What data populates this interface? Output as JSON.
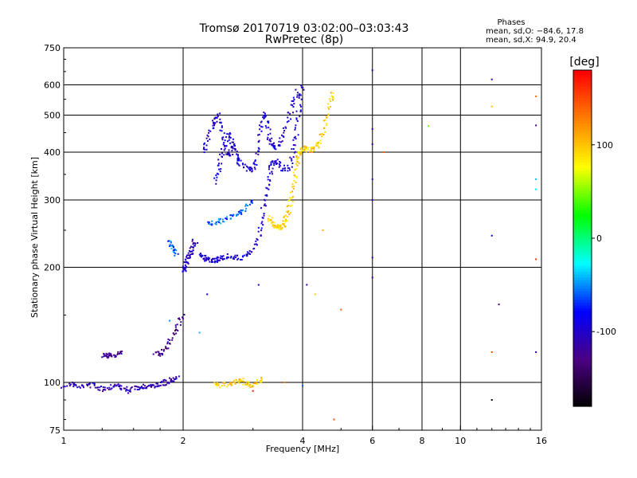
{
  "chart_data": {
    "type": "scatter",
    "title_line1": "Tromsø 20170719 03:02:00–03:03:43",
    "title_line2": "RwPretec (8p)",
    "xlabel": "Frequency [MHz]",
    "ylabel": "Stationary phase Virtual Height [km]",
    "x_scale": "log",
    "y_scale": "log",
    "xlim": [
      1,
      16
    ],
    "ylim": [
      75,
      750
    ],
    "x_ticks": [
      1,
      2,
      4,
      6,
      8,
      10,
      16
    ],
    "y_ticks": [
      75,
      100,
      200,
      300,
      400,
      500,
      600,
      750
    ],
    "x_grid": [
      2,
      4,
      6,
      8,
      10
    ],
    "y_grid": [
      100,
      200,
      300,
      400,
      500,
      600
    ],
    "grid": true,
    "phases": {
      "heading": "Phases",
      "line_o": "mean, sd,O: −84.6, 17.8",
      "line_x": "mean, sd,X:  94.9, 20.4"
    },
    "colorbar": {
      "label": "[deg]",
      "range": [
        -180,
        180
      ],
      "ticks": [
        100,
        0,
        -100
      ],
      "colormap": [
        "#000000",
        "#4b0082",
        "#0000ff",
        "#00ffff",
        "#00ff00",
        "#ffff00",
        "#ff8000",
        "#ff0000"
      ]
    },
    "traces": [
      {
        "color_deg": -110,
        "points": [
          [
            1.0,
            98
          ],
          [
            1.05,
            99
          ],
          [
            1.1,
            97
          ],
          [
            1.15,
            99
          ],
          [
            1.2,
            98
          ],
          [
            1.25,
            96
          ],
          [
            1.3,
            97
          ],
          [
            1.35,
            99
          ],
          [
            1.4,
            97
          ],
          [
            1.45,
            95
          ],
          [
            1.5,
            96
          ],
          [
            1.55,
            97
          ],
          [
            1.6,
            98
          ],
          [
            1.65,
            97
          ],
          [
            1.7,
            98
          ],
          [
            1.75,
            99
          ],
          [
            1.8,
            100
          ],
          [
            1.85,
            101
          ],
          [
            1.9,
            102
          ],
          [
            1.95,
            104
          ]
        ]
      },
      {
        "color_deg": -120,
        "points": [
          [
            1.25,
            118
          ],
          [
            1.28,
            117
          ],
          [
            1.3,
            118
          ],
          [
            1.33,
            117
          ],
          [
            1.36,
            119
          ],
          [
            1.4,
            121
          ]
        ]
      },
      {
        "color_deg": -125,
        "points": [
          [
            1.7,
            120
          ],
          [
            1.75,
            118
          ],
          [
            1.8,
            122
          ],
          [
            1.85,
            128
          ],
          [
            1.9,
            135
          ],
          [
            1.95,
            142
          ],
          [
            2.0,
            150
          ]
        ]
      },
      {
        "color_deg": -100,
        "points": [
          [
            2.0,
            195
          ],
          [
            2.02,
            200
          ],
          [
            2.04,
            205
          ],
          [
            2.06,
            210
          ],
          [
            2.08,
            215
          ],
          [
            2.1,
            222
          ],
          [
            2.12,
            228
          ],
          [
            2.15,
            235
          ]
        ]
      },
      {
        "color_deg": -95,
        "points": [
          [
            2.2,
            215
          ],
          [
            2.25,
            212
          ],
          [
            2.3,
            210
          ],
          [
            2.35,
            208
          ],
          [
            2.4,
            208
          ],
          [
            2.45,
            210
          ],
          [
            2.5,
            212
          ],
          [
            2.6,
            214
          ],
          [
            2.7,
            212
          ],
          [
            2.8,
            212
          ],
          [
            2.9,
            215
          ],
          [
            3.0,
            222
          ],
          [
            3.1,
            240
          ],
          [
            3.15,
            262
          ],
          [
            3.2,
            290
          ],
          [
            3.25,
            320
          ],
          [
            3.3,
            350
          ],
          [
            3.35,
            370
          ],
          [
            3.4,
            380
          ],
          [
            3.5,
            370
          ],
          [
            3.6,
            360
          ],
          [
            3.7,
            365
          ],
          [
            3.8,
            400
          ],
          [
            3.85,
            440
          ],
          [
            3.9,
            500
          ],
          [
            3.95,
            560
          ],
          [
            4.0,
            600
          ]
        ]
      },
      {
        "color_deg": -95,
        "points": [
          [
            2.4,
            330
          ],
          [
            2.45,
            360
          ],
          [
            2.5,
            390
          ],
          [
            2.55,
            420
          ],
          [
            2.6,
            450
          ],
          [
            2.65,
            430
          ],
          [
            2.7,
            400
          ],
          [
            2.75,
            380
          ],
          [
            2.8,
            370
          ],
          [
            2.9,
            360
          ],
          [
            3.0,
            360
          ],
          [
            3.05,
            380
          ],
          [
            3.1,
            420
          ],
          [
            3.15,
            470
          ],
          [
            3.2,
            510
          ],
          [
            3.25,
            480
          ],
          [
            3.3,
            440
          ],
          [
            3.35,
            420
          ],
          [
            3.4,
            410
          ],
          [
            3.5,
            420
          ],
          [
            3.6,
            450
          ],
          [
            3.7,
            500
          ],
          [
            3.8,
            540
          ],
          [
            3.9,
            580
          ]
        ]
      },
      {
        "color_deg": -100,
        "points": [
          [
            2.25,
            400
          ],
          [
            2.3,
            430
          ],
          [
            2.35,
            460
          ],
          [
            2.4,
            480
          ],
          [
            2.45,
            500
          ],
          [
            2.5,
            470
          ],
          [
            2.55,
            420
          ],
          [
            2.6,
            390
          ],
          [
            2.65,
            400
          ],
          [
            2.7,
            420
          ]
        ]
      },
      {
        "color_deg": -60,
        "points": [
          [
            2.3,
            260
          ],
          [
            2.4,
            262
          ],
          [
            2.5,
            265
          ],
          [
            2.6,
            270
          ],
          [
            2.7,
            275
          ],
          [
            2.8,
            280
          ],
          [
            2.9,
            290
          ],
          [
            3.0,
            300
          ]
        ]
      },
      {
        "color_deg": -55,
        "points": [
          [
            1.85,
            235
          ],
          [
            1.88,
            228
          ],
          [
            1.9,
            222
          ],
          [
            1.92,
            215
          ]
        ]
      },
      {
        "color_deg": 95,
        "points": [
          [
            3.3,
            270
          ],
          [
            3.35,
            262
          ],
          [
            3.4,
            258
          ],
          [
            3.45,
            255
          ],
          [
            3.5,
            254
          ],
          [
            3.55,
            256
          ],
          [
            3.6,
            262
          ],
          [
            3.65,
            270
          ],
          [
            3.7,
            285
          ],
          [
            3.75,
            305
          ],
          [
            3.8,
            330
          ],
          [
            3.85,
            360
          ],
          [
            3.9,
            385
          ],
          [
            3.95,
            400
          ],
          [
            4.0,
            405
          ],
          [
            4.1,
            410
          ],
          [
            4.2,
            405
          ],
          [
            4.3,
            410
          ],
          [
            4.4,
            420
          ],
          [
            4.5,
            450
          ],
          [
            4.6,
            490
          ],
          [
            4.7,
            540
          ],
          [
            4.75,
            580
          ]
        ]
      },
      {
        "color_deg": 100,
        "points": [
          [
            2.4,
            99
          ],
          [
            2.5,
            98
          ],
          [
            2.6,
            99
          ],
          [
            2.7,
            100
          ],
          [
            2.8,
            101
          ],
          [
            2.9,
            99
          ],
          [
            3.0,
            98
          ],
          [
            3.1,
            100
          ],
          [
            3.2,
            102
          ]
        ]
      }
    ],
    "isolated": [
      {
        "x": 6.0,
        "y": 655,
        "color_deg": -110
      },
      {
        "x": 6.0,
        "y": 460,
        "color_deg": -110
      },
      {
        "x": 6.0,
        "y": 420,
        "color_deg": -110
      },
      {
        "x": 6.0,
        "y": 340,
        "color_deg": -110
      },
      {
        "x": 6.0,
        "y": 300,
        "color_deg": -110
      },
      {
        "x": 6.0,
        "y": 212,
        "color_deg": -110
      },
      {
        "x": 6.0,
        "y": 188,
        "color_deg": -110
      },
      {
        "x": 6.4,
        "y": 400,
        "color_deg": 140
      },
      {
        "x": 8.3,
        "y": 468,
        "color_deg": 50
      },
      {
        "x": 12.0,
        "y": 620,
        "color_deg": -110
      },
      {
        "x": 12.0,
        "y": 527,
        "color_deg": 100
      },
      {
        "x": 12.0,
        "y": 242,
        "color_deg": -80
      },
      {
        "x": 12.0,
        "y": 120,
        "color_deg": 150
      },
      {
        "x": 12.0,
        "y": 90,
        "color_deg": -175
      },
      {
        "x": 12.5,
        "y": 160,
        "color_deg": -130
      },
      {
        "x": 15.5,
        "y": 560,
        "color_deg": 140
      },
      {
        "x": 15.5,
        "y": 470,
        "color_deg": -120
      },
      {
        "x": 15.5,
        "y": 340,
        "color_deg": -40
      },
      {
        "x": 15.5,
        "y": 320,
        "color_deg": -30
      },
      {
        "x": 15.5,
        "y": 210,
        "color_deg": 160
      },
      {
        "x": 15.5,
        "y": 120,
        "color_deg": -110
      },
      {
        "x": 4.0,
        "y": 98,
        "color_deg": -60
      },
      {
        "x": 4.1,
        "y": 180,
        "color_deg": -110
      },
      {
        "x": 4.3,
        "y": 170,
        "color_deg": 100
      },
      {
        "x": 4.5,
        "y": 250,
        "color_deg": 110
      },
      {
        "x": 4.8,
        "y": 80,
        "color_deg": 150
      },
      {
        "x": 5.0,
        "y": 155,
        "color_deg": 140
      },
      {
        "x": 1.85,
        "y": 145,
        "color_deg": -50
      },
      {
        "x": 2.2,
        "y": 135,
        "color_deg": -40
      },
      {
        "x": 2.3,
        "y": 170,
        "color_deg": -80
      },
      {
        "x": 3.1,
        "y": 180,
        "color_deg": -100
      },
      {
        "x": 3.0,
        "y": 95,
        "color_deg": 170
      },
      {
        "x": 3.6,
        "y": 100,
        "color_deg": 130
      }
    ]
  }
}
